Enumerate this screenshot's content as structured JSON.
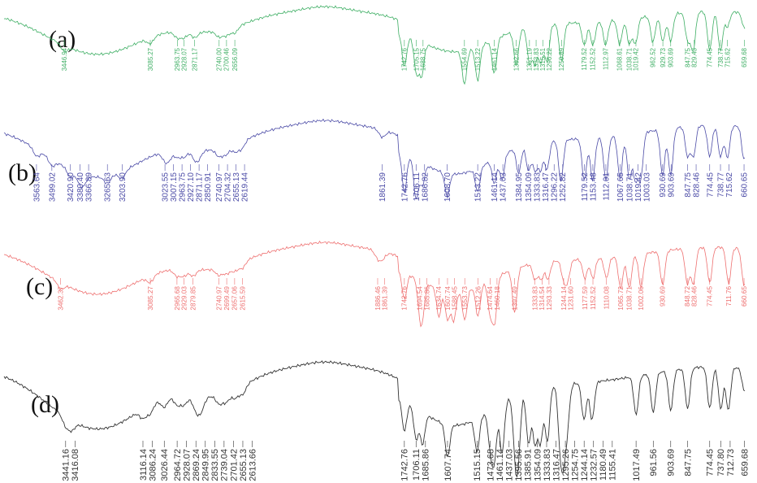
{
  "chart_data": {
    "type": "line",
    "title": "",
    "xlabel": "",
    "ylabel": "",
    "x_unit": "cm-1",
    "x_direction": "decreasing",
    "xlim": [
      3700,
      650
    ],
    "grid": false,
    "legend": "none",
    "series": [
      {
        "label": "(a)",
        "color": "#3dae63",
        "peaks": [
          "3446.94",
          "3085.27",
          "2963.75",
          "2928.07",
          "2871.17",
          "2740.00",
          "2700.46",
          "2656.09",
          "1742.76",
          "1705.15",
          "1688.75",
          "1554.69",
          "1513.22",
          "1461.14",
          "1392.66",
          "1351.19",
          "1333.83",
          "1315.51",
          "1296.22",
          "1250.89",
          "1179.52",
          "1152.52",
          "1112.97",
          "1068.61",
          "1038.71",
          "1019.42",
          "962.52",
          "929.73",
          "903.69",
          "847.75",
          "829.43",
          "774.45",
          "738.77",
          "715.62",
          "659.68"
        ]
      },
      {
        "label": "(b)",
        "color": "#4a4aa6",
        "peaks": [
          "3563.64",
          "3499.02",
          "3420.90",
          "3380.40",
          "3366.89",
          "3265.63",
          "3203.90",
          "3023.55",
          "3007.15",
          "2963.75",
          "2927.10",
          "2871.17",
          "2850.91",
          "2740.97",
          "2704.32",
          "2655.13",
          "2619.44",
          "1861.39",
          "1742.76",
          "1706.11",
          "1686.82",
          "1608.70",
          "1513.22",
          "1461.14",
          "1437.03",
          "1384.95",
          "1354.09",
          "1333.83",
          "1316.47",
          "1296.22",
          "1252.82",
          "1179.52",
          "1153.48",
          "1112.01",
          "1067.65",
          "1038.71",
          "1019.42",
          "1003.03",
          "930.69",
          "903.69",
          "847.75",
          "828.46",
          "774.45",
          "738.77",
          "715.62",
          "660.65"
        ]
      },
      {
        "label": "(c)",
        "color": "#ee7070",
        "peaks": [
          "3462.37",
          "3085.27",
          "2965.68",
          "2929.03",
          "2879.85",
          "2740.97",
          "2699.49",
          "2657.06",
          "2615.59",
          "1886.46",
          "1861.39",
          "1742.76",
          "1694.54",
          "1685.86",
          "1634.74",
          "1607.74",
          "1588.45",
          "1553.73",
          "1512.26",
          "1474.64",
          "1460.18",
          "1397.49",
          "1333.83",
          "1314.54",
          "1293.33",
          "1244.14",
          "1231.60",
          "1177.59",
          "1152.52",
          "1110.08",
          "1065.72",
          "1038.71",
          "1002.06",
          "930.69",
          "848.72",
          "828.46",
          "774.45",
          "711.76",
          "660.65"
        ]
      },
      {
        "label": "(d)",
        "color": "#333333",
        "peaks": [
          "3441.16",
          "3416.08",
          "3116.14",
          "3086.24",
          "3026.44",
          "2964.72",
          "2928.07",
          "2869.24",
          "2849.95",
          "2833.55",
          "2739.04",
          "2701.42",
          "2655.13",
          "2613.66",
          "1742.76",
          "1706.11",
          "1685.86",
          "1607.74",
          "1515.15",
          "1473.68",
          "1461.14",
          "1437.03",
          "1395.56",
          "1385.91",
          "1354.09",
          "1333.83",
          "1316.47",
          "1295.26",
          "1254.75",
          "1244.14",
          "1232.57",
          "1180.49",
          "1155.41",
          "1017.49",
          "961.56",
          "903.69",
          "847.75",
          "774.45",
          "737.80",
          "712.73",
          "659.68"
        ]
      }
    ]
  }
}
